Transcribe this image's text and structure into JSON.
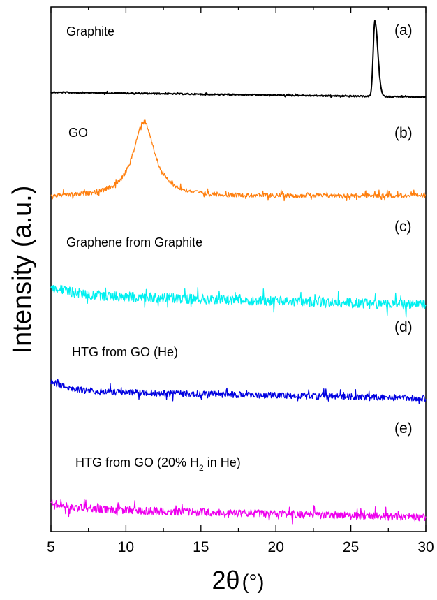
{
  "chart_data": {
    "type": "line",
    "xlabel": {
      "symbol": "2θ",
      "unit": "(°)"
    },
    "ylabel": "Intensity (a.u.)",
    "xlim": [
      5,
      30
    ],
    "x_ticks": [
      5,
      10,
      15,
      20,
      25,
      30
    ],
    "x_tick_labels": [
      "5",
      "10",
      "15",
      "20",
      "25",
      "30"
    ],
    "grid": false,
    "legend": "none",
    "series": [
      {
        "panel": "(a)",
        "name": "Graphite",
        "color": "#000000",
        "description": "flat baseline with a single sharp peak",
        "peak_position": 26.6
      },
      {
        "panel": "(b)",
        "name": "GO",
        "color": "#ff7f0e",
        "description": "broad peak on a noisy baseline",
        "peak_position": 11.2
      },
      {
        "panel": "(c)",
        "name": "Graphene from Graphite",
        "color": "#00f0f0",
        "description": "noisy baseline decaying slowly with increasing 2θ, no peak"
      },
      {
        "panel": "(d)",
        "name": "HTG from GO (He)",
        "color": "#0000e0",
        "description": "noisy baseline decaying slowly with increasing 2θ, no peak"
      },
      {
        "panel": "(e)",
        "name_parts": [
          "HTG from GO (20% H",
          "2",
          " in He)"
        ],
        "color": "#ee00ee",
        "description": "noisy baseline decaying slowly with increasing 2θ, no peak"
      }
    ]
  }
}
